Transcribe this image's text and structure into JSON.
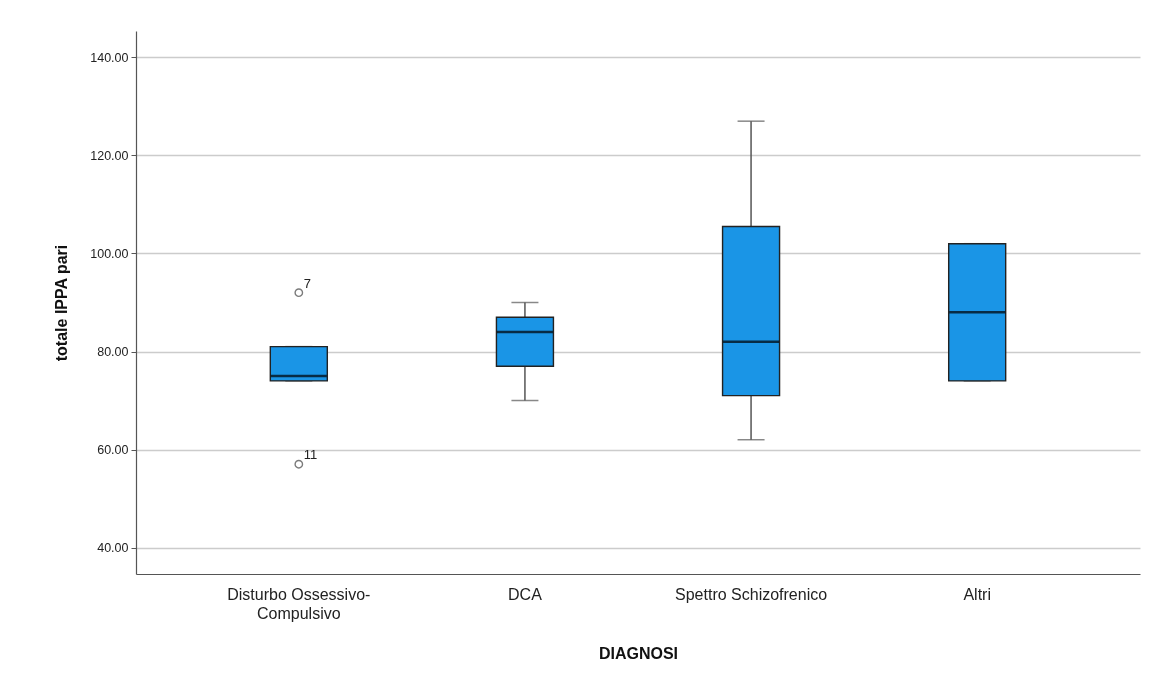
{
  "chart_data": {
    "type": "box",
    "categories": [
      "Disturbo Ossessivo-Compulsivo",
      "DCA",
      "Spettro Schizofrenico",
      "Altri"
    ],
    "series": [
      {
        "color": "#1a95e6",
        "boxes": [
          {
            "low": 74,
            "q1": 74,
            "median": 75,
            "q3": 81,
            "high": 81,
            "outliers": [
              92,
              57
            ]
          },
          {
            "low": 70,
            "q1": 77,
            "median": 84,
            "q3": 87,
            "high": 90
          },
          {
            "low": 62,
            "q1": 71,
            "median": 82,
            "q3": 105.5,
            "high": 127
          },
          {
            "low": 74,
            "q1": 74,
            "median": 88,
            "q3": 102,
            "high": 102
          }
        ]
      }
    ],
    "xlabel": "DIAGNOSI",
    "ylabel": "totale IPPA pari",
    "ylim": [
      34.6,
      145.4
    ],
    "yticks": [
      {
        "value": 40,
        "label": "40.00"
      },
      {
        "value": 60,
        "label": "60.00"
      },
      {
        "value": 80,
        "label": "80.00"
      },
      {
        "value": 100,
        "label": "100.00"
      },
      {
        "value": 120,
        "label": "120.00"
      },
      {
        "value": 140,
        "label": "140.00"
      }
    ],
    "grid": "y",
    "annotations": [
      "7",
      "11"
    ]
  }
}
